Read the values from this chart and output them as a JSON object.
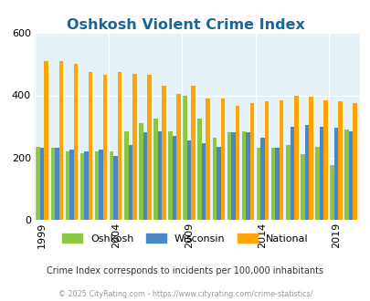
{
  "title": "Oshkosh Violent Crime Index",
  "title_color": "#1a6699",
  "subtitle": "Crime Index corresponds to incidents per 100,000 inhabitants",
  "footer": "© 2025 CityRating.com - https://www.cityrating.com/crime-statistics/",
  "years": [
    1999,
    2000,
    2001,
    2002,
    2003,
    2004,
    2005,
    2006,
    2007,
    2008,
    2009,
    2010,
    2011,
    2012,
    2013,
    2014,
    2015,
    2016,
    2017,
    2018,
    2019,
    2020
  ],
  "oshkosh": [
    235,
    230,
    220,
    215,
    220,
    220,
    285,
    310,
    325,
    285,
    400,
    325,
    265,
    280,
    285,
    230,
    230,
    240,
    210,
    235,
    175,
    290
  ],
  "wisconsin": [
    230,
    230,
    225,
    220,
    225,
    205,
    240,
    280,
    285,
    270,
    255,
    245,
    235,
    280,
    280,
    265,
    230,
    300,
    305,
    300,
    295,
    285
  ],
  "national": [
    510,
    510,
    500,
    475,
    465,
    475,
    470,
    465,
    430,
    405,
    430,
    390,
    390,
    365,
    375,
    380,
    385,
    400,
    395,
    385,
    380,
    375
  ],
  "colors": {
    "oshkosh": "#8dc641",
    "wisconsin": "#4a86c8",
    "national": "#ffa500"
  },
  "ylim": [
    0,
    600
  ],
  "yticks": [
    0,
    200,
    400,
    600
  ],
  "background_color": "#e5f2f7",
  "legend_labels": [
    "Oshkosh",
    "Wisconsin",
    "National"
  ],
  "bar_width": 0.28,
  "tick_years": [
    1999,
    2004,
    2009,
    2014,
    2019
  ]
}
